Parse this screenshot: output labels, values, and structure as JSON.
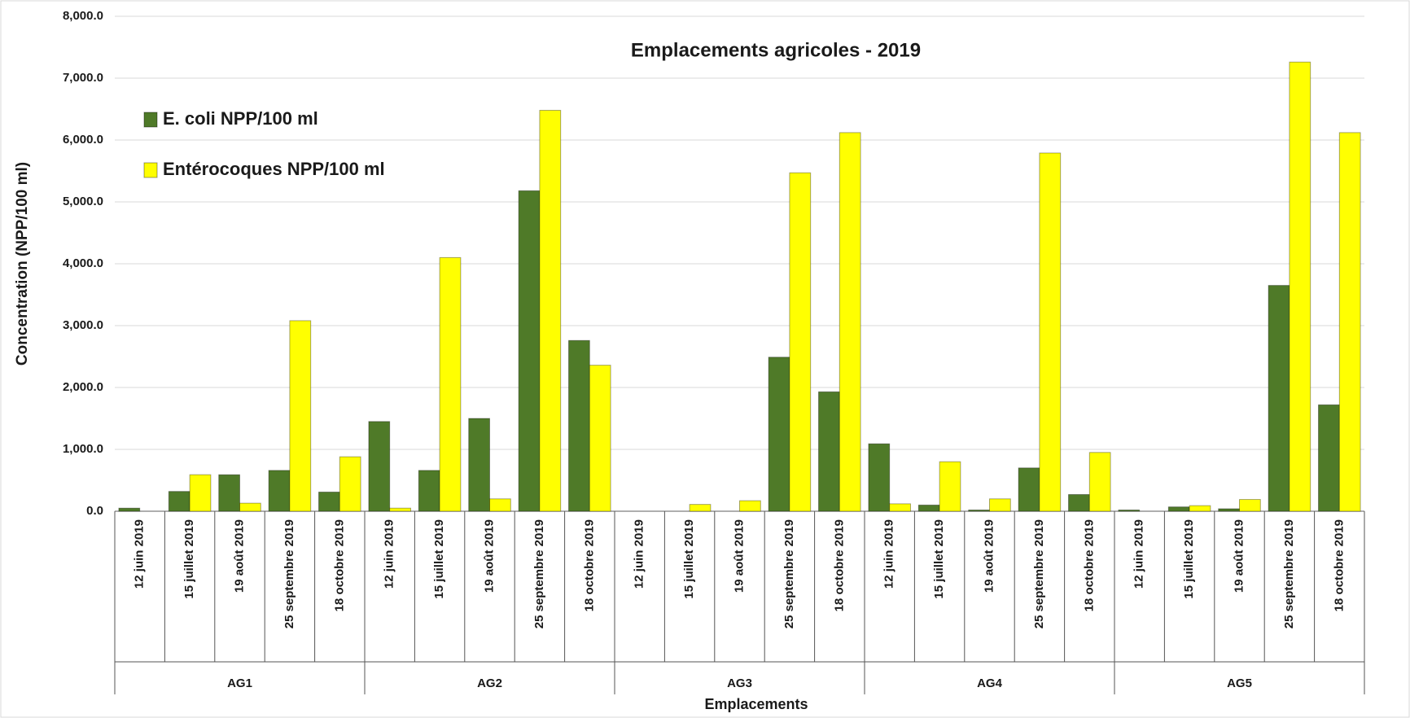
{
  "chart_data": {
    "type": "bar",
    "title": "Emplacements agricoles - 2019",
    "x_label": "Emplacements",
    "y_label": "Concentration (NPP/100 ml)",
    "groups": [
      "AG1",
      "AG2",
      "AG3",
      "AG4",
      "AG5"
    ],
    "categories": [
      "12 juin 2019",
      "15 juillet 2019",
      "19 août 2019",
      "25 septembre 2019",
      "18 octobre 2019",
      "12 juin 2019",
      "15 juillet 2019",
      "19 août 2019",
      "25 septembre 2019",
      "18 octobre 2019",
      "12 juin 2019",
      "15 juillet 2019",
      "19 août 2019",
      "25 septembre 2019",
      "18 octobre 2019",
      "12 juin 2019",
      "15 juillet 2019",
      "19 août 2019",
      "25 septembre 2019",
      "18 octobre 2019",
      "12 juin 2019",
      "15 juillet 2019",
      "19 août 2019",
      "25 septembre 2019",
      "18 octobre 2019"
    ],
    "series": [
      {
        "name": "E. coli NPP/100 ml",
        "color": "#4f7a28",
        "values": [
          50,
          320,
          590,
          660,
          310,
          1450,
          660,
          1500,
          5180,
          2760,
          0,
          0,
          0,
          2490,
          1930,
          1090,
          100,
          20,
          700,
          270,
          20,
          70,
          40,
          3650,
          1720
        ]
      },
      {
        "name": "Entérocoques NPP/100 ml",
        "color": "#ffff00",
        "values": [
          0,
          590,
          130,
          3080,
          880,
          50,
          4100,
          200,
          6480,
          2360,
          0,
          110,
          170,
          5470,
          6120,
          120,
          800,
          200,
          5790,
          950,
          0,
          90,
          190,
          7260,
          6120
        ]
      }
    ],
    "ylim": [
      0,
      8000
    ],
    "yticks": [
      {
        "value": 0,
        "label": "0.0"
      },
      {
        "value": 1000,
        "label": "1,000.0"
      },
      {
        "value": 2000,
        "label": "2,000.0"
      },
      {
        "value": 3000,
        "label": "3,000.0"
      },
      {
        "value": 4000,
        "label": "4,000.0"
      },
      {
        "value": 5000,
        "label": "5,000.0"
      },
      {
        "value": 6000,
        "label": "6,000.0"
      },
      {
        "value": 7000,
        "label": "7,000.0"
      },
      {
        "value": 8000,
        "label": "8,000.0"
      }
    ],
    "grid": true,
    "legend": "upper left"
  }
}
